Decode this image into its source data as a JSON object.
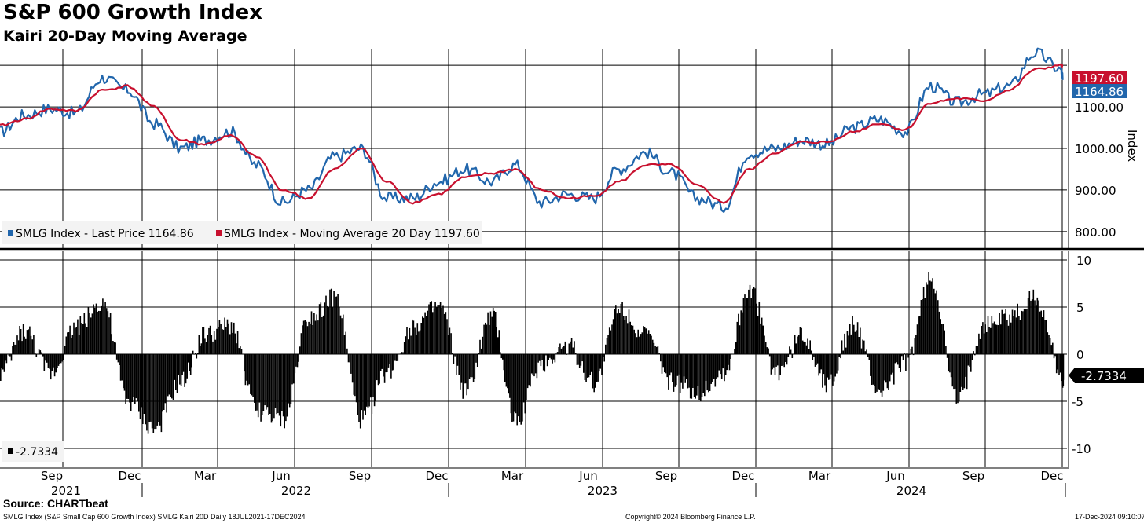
{
  "title": "S&P 600 Growth Index",
  "subtitle": "Kairi 20-Day Moving Average",
  "source": "Source: CHARTbeat",
  "footer": {
    "left": "SMLG Index (S&P Small Cap 600 Growth Index) SMLG Kairi 20D  Daily 18JUL2021-17DEC2024",
    "middle": "Copyright© 2024 Bloomberg Finance L.P.",
    "right": "17-Dec-2024 09:10:07"
  },
  "colors": {
    "price": "#2166ac",
    "ma": "#c8102e",
    "kairi": "#000000",
    "grid": "#000000"
  },
  "chart_data": [
    {
      "type": "line",
      "ylabel": "Index",
      "ylim": [
        760,
        1240
      ],
      "yticks": [
        "800.00",
        "900.00",
        "1000.00",
        "1100.00"
      ],
      "ytick_values": [
        800,
        900,
        1000,
        1100
      ],
      "legend_position": "bottom-left",
      "legend": [
        {
          "label": "SMLG Index - Last Price 1164.86",
          "color": "#2166ac"
        },
        {
          "label": "SMLG Index - Moving Average 20 Day 1197.60",
          "color": "#c8102e"
        }
      ],
      "last_value_tags": [
        {
          "label": "1197.60",
          "value": 1197.6,
          "color": "#c8102e"
        },
        {
          "label": "1164.86",
          "value": 1164.86,
          "color": "#2166ac"
        }
      ],
      "x": [
        "2021-07-18",
        "2021-08-15",
        "2021-09-15",
        "2021-10-15",
        "2021-11-15",
        "2021-12-15",
        "2022-01-15",
        "2022-02-15",
        "2022-03-15",
        "2022-04-15",
        "2022-05-15",
        "2022-06-15",
        "2022-07-15",
        "2022-08-15",
        "2022-09-15",
        "2022-10-15",
        "2022-11-15",
        "2022-12-15",
        "2023-01-15",
        "2023-02-15",
        "2023-03-15",
        "2023-04-15",
        "2023-05-15",
        "2023-06-15",
        "2023-07-15",
        "2023-08-15",
        "2023-09-15",
        "2023-10-15",
        "2023-11-15",
        "2023-12-15",
        "2024-01-15",
        "2024-02-15",
        "2024-03-15",
        "2024-04-15",
        "2024-05-15",
        "2024-06-15",
        "2024-07-15",
        "2024-08-15",
        "2024-09-15",
        "2024-10-15",
        "2024-11-15",
        "2024-12-15",
        "2024-12-17"
      ],
      "series": [
        {
          "name": "SMLG Index - Last Price",
          "values": [
            1040,
            1080,
            1095,
            1085,
            1170,
            1140,
            1060,
            1000,
            1020,
            1040,
            960,
            870,
            900,
            980,
            1000,
            880,
            880,
            920,
            950,
            920,
            960,
            870,
            890,
            880,
            950,
            990,
            940,
            880,
            860,
            990,
            1000,
            1020,
            1010,
            1050,
            1070,
            1040,
            1150,
            1110,
            1130,
            1150,
            1230,
            1190,
            1164.86
          ]
        },
        {
          "name": "SMLG Index - Moving Average 20 Day",
          "values": [
            1055,
            1070,
            1095,
            1090,
            1140,
            1150,
            1100,
            1020,
            1010,
            1030,
            980,
            900,
            880,
            950,
            1000,
            920,
            870,
            890,
            930,
            940,
            950,
            900,
            880,
            885,
            920,
            960,
            960,
            910,
            870,
            950,
            990,
            1015,
            1015,
            1040,
            1060,
            1045,
            1110,
            1120,
            1115,
            1140,
            1190,
            1200,
            1197.6
          ]
        }
      ]
    },
    {
      "type": "bar",
      "ylim": [
        -12,
        11
      ],
      "yticks": [
        "10",
        "5",
        "0",
        "-5",
        "-10"
      ],
      "ytick_values": [
        10,
        5,
        0,
        -5,
        -10
      ],
      "legend_position": "bottom-left",
      "legend": [
        {
          "label": "-2.7334",
          "color": "#000000"
        }
      ],
      "last_value_tags": [
        {
          "label": "-2.7334",
          "value": -2.7334,
          "color": "#000000"
        }
      ],
      "x": [
        "2021-07-18",
        "2021-08-15",
        "2021-09-15",
        "2021-10-15",
        "2021-11-15",
        "2021-12-15",
        "2022-01-15",
        "2022-02-15",
        "2022-03-15",
        "2022-04-15",
        "2022-05-15",
        "2022-06-15",
        "2022-07-15",
        "2022-08-15",
        "2022-09-15",
        "2022-10-15",
        "2022-11-15",
        "2022-12-15",
        "2023-01-15",
        "2023-02-15",
        "2023-03-15",
        "2023-04-15",
        "2023-05-15",
        "2023-06-15",
        "2023-07-15",
        "2023-08-15",
        "2023-09-15",
        "2023-10-15",
        "2023-11-15",
        "2023-12-15",
        "2024-01-15",
        "2024-02-15",
        "2024-03-15",
        "2024-04-15",
        "2024-05-15",
        "2024-06-15",
        "2024-07-15",
        "2024-08-15",
        "2024-09-15",
        "2024-10-15",
        "2024-11-15",
        "2024-12-15",
        "2024-12-17"
      ],
      "series": [
        {
          "name": "SMLG Kairi 20D",
          "values": [
            -2,
            2.5,
            -2,
            3,
            5.5,
            -5,
            -8,
            -3,
            2,
            3,
            -6,
            -7,
            4,
            6,
            -7,
            -2,
            3,
            5,
            -4,
            4,
            -7,
            -1,
            1,
            -3,
            5,
            2,
            -3,
            -4,
            -2,
            7,
            -2,
            2,
            -3,
            3,
            -4,
            -1,
            8,
            -5,
            3,
            4,
            6,
            -2,
            -2.7334
          ]
        }
      ]
    }
  ],
  "xaxis": {
    "month_labels": [
      "Sep",
      "Dec",
      "Mar",
      "Jun",
      "Sep",
      "Dec",
      "Mar",
      "Jun",
      "Sep",
      "Dec",
      "Mar",
      "Jun",
      "Sep",
      "Dec"
    ],
    "year_labels": [
      "2021",
      "2022",
      "2023",
      "2024"
    ]
  }
}
